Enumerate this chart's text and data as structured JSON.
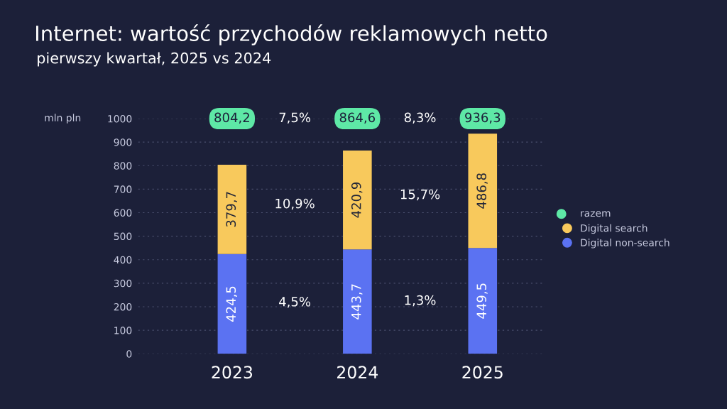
{
  "chart_data": {
    "type": "bar",
    "title": "Internet: wartość przychodów reklamowych netto",
    "subtitle": "pierwszy kwartał, 2025 vs 2024",
    "ylabel": "mln pln",
    "categories": [
      "2023",
      "2024",
      "2025"
    ],
    "stacked": true,
    "series": [
      {
        "name": "Digital non-search",
        "color": "#5b72f2",
        "values": [
          424.5,
          443.7,
          449.5
        ]
      },
      {
        "name": "Digital search",
        "color": "#f8c95c",
        "values": [
          379.7,
          420.9,
          486.8
        ]
      }
    ],
    "totals": [
      "804,2",
      "864,6",
      "936,3"
    ],
    "value_labels": [
      [
        "424,5",
        "443,7",
        "449,5"
      ],
      [
        "379,7",
        "420,9",
        "486,8"
      ]
    ],
    "annotations": [
      "7,5%",
      "8,3%",
      "10,9%",
      "15,7%",
      "4,5%",
      "1,3%",
      "razem"
    ],
    "ylim": [
      0,
      1000
    ],
    "yticks": [
      0,
      100,
      200,
      300,
      400,
      500,
      600,
      700,
      800,
      900,
      1000
    ],
    "grid": "y",
    "legend": "right"
  }
}
